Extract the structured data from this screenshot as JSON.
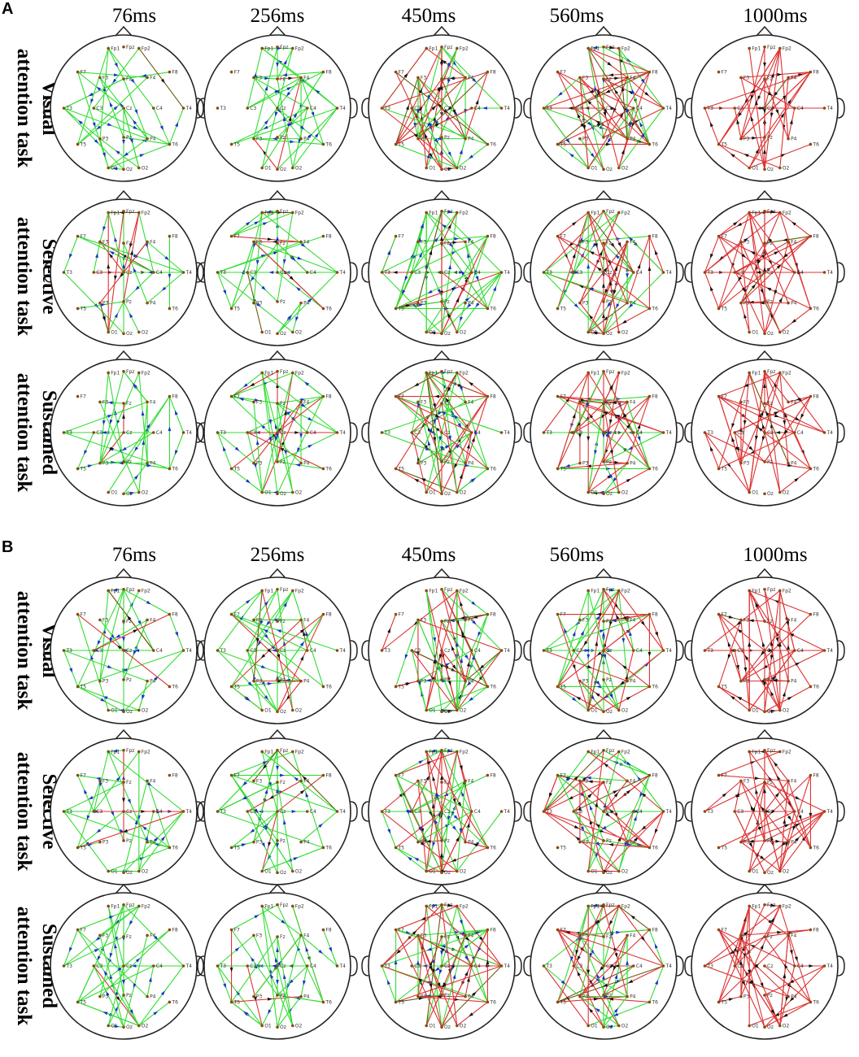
{
  "figure": {
    "panels": [
      {
        "letter": "A",
        "time_labels": [
          "76ms",
          "256ms",
          "450ms",
          "560ms",
          "1000ms"
        ],
        "rows": [
          {
            "line1": "Visual",
            "line2": "attention task"
          },
          {
            "line1": "Selective",
            "line2": "attention task"
          },
          {
            "line1": "Sustained",
            "line2": "attention task"
          }
        ]
      },
      {
        "letter": "B",
        "time_labels": [
          "76ms",
          "256ms",
          "450ms",
          "560ms",
          "1000ms"
        ],
        "rows": [
          {
            "line1": "Visual",
            "line2": "attention task"
          },
          {
            "line1": "Selective",
            "line2": "attention task"
          },
          {
            "line1": "Sustained",
            "line2": "attention task"
          }
        ]
      }
    ],
    "electrodes": [
      "Fp1",
      "Fpz",
      "Fp2",
      "F7",
      "F3",
      "Fz",
      "F4",
      "F8",
      "T3",
      "C3",
      "Cz",
      "C4",
      "T4",
      "T5",
      "P3",
      "Pz",
      "P4",
      "T6",
      "O1",
      "Oz",
      "O2"
    ],
    "colors": {
      "green_edge": "#33dd33",
      "red_edge": "#dd3333",
      "dark_edge": "#6b5a10",
      "blue_arrow": "#1a2fcc",
      "black_arrow": "#111111",
      "head_outline": "#222222"
    }
  }
}
